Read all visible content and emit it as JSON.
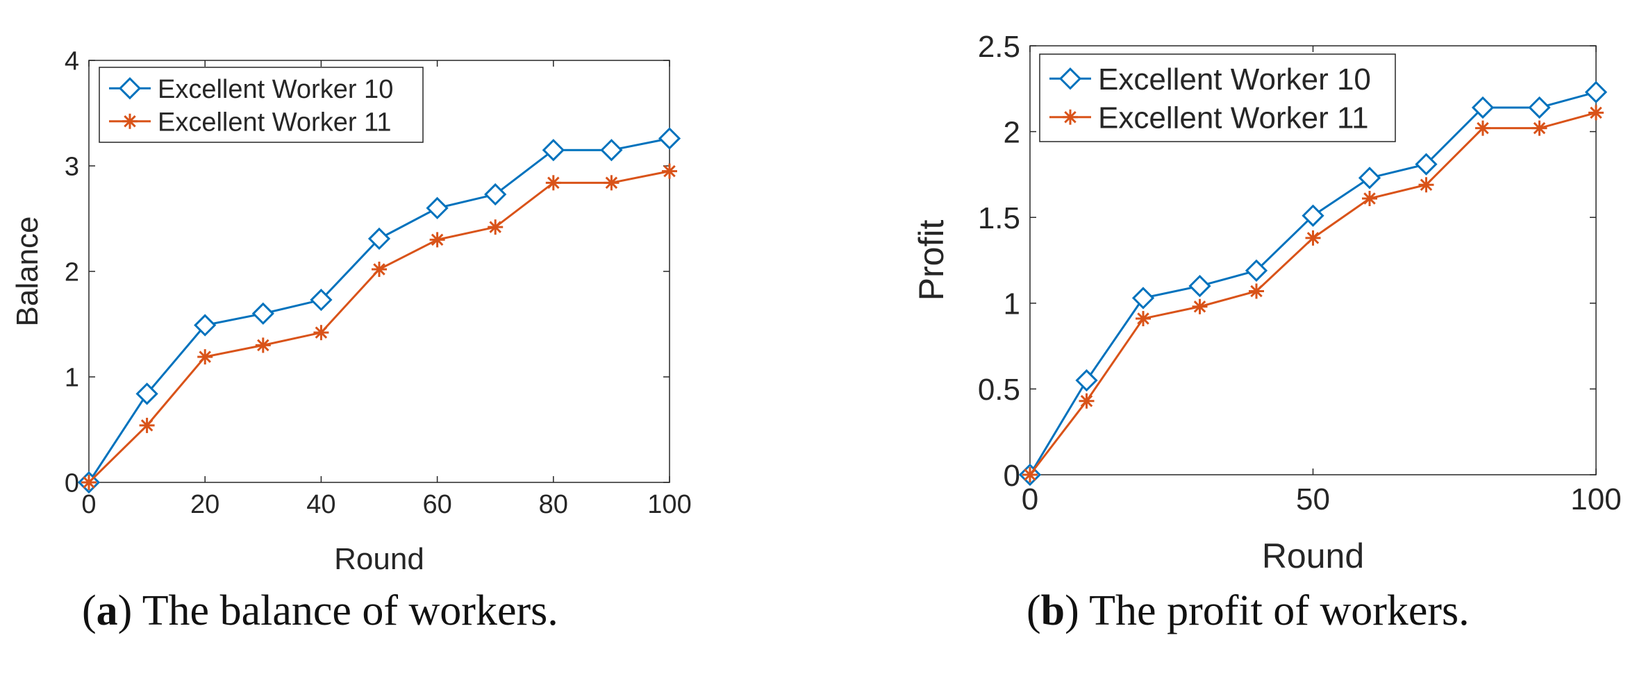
{
  "colors": {
    "series_blue": "#0072BD",
    "series_orange": "#D95319",
    "axis": "#262626"
  },
  "captions": [
    {
      "letter": "a",
      "text": "The balance of workers."
    },
    {
      "letter": "b",
      "text": "The profit of workers."
    }
  ],
  "chart_data": [
    {
      "type": "line",
      "xlabel": "Round",
      "ylabel": "Balance",
      "xlim": [
        0,
        100
      ],
      "ylim": [
        0,
        4
      ],
      "xticks": [
        0,
        20,
        40,
        60,
        80,
        100
      ],
      "yticks": [
        0,
        1,
        2,
        3,
        4
      ],
      "legend_position": "top-left",
      "grid": false,
      "x": [
        0,
        10,
        20,
        30,
        40,
        50,
        60,
        70,
        80,
        90,
        100
      ],
      "series": [
        {
          "name": "Excellent Worker 10",
          "marker": "diamond",
          "color": "#0072BD",
          "values": [
            0,
            0.84,
            1.49,
            1.6,
            1.73,
            2.31,
            2.6,
            2.73,
            3.15,
            3.15,
            3.26
          ]
        },
        {
          "name": "Excellent Worker 11",
          "marker": "asterisk",
          "color": "#D95319",
          "values": [
            0,
            0.54,
            1.19,
            1.3,
            1.42,
            2.02,
            2.3,
            2.42,
            2.84,
            2.84,
            2.95
          ]
        }
      ]
    },
    {
      "type": "line",
      "xlabel": "Round",
      "ylabel": "Profit",
      "xlim": [
        0,
        100
      ],
      "ylim": [
        0,
        2.5
      ],
      "xticks": [
        0,
        50,
        100
      ],
      "yticks": [
        0,
        0.5,
        1,
        1.5,
        2,
        2.5
      ],
      "legend_position": "top-left",
      "grid": false,
      "x": [
        0,
        10,
        20,
        30,
        40,
        50,
        60,
        70,
        80,
        90,
        100
      ],
      "series": [
        {
          "name": "Excellent Worker 10",
          "marker": "diamond",
          "color": "#0072BD",
          "values": [
            0,
            0.55,
            1.03,
            1.1,
            1.19,
            1.51,
            1.73,
            1.81,
            2.14,
            2.14,
            2.23
          ]
        },
        {
          "name": "Excellent Worker 11",
          "marker": "asterisk",
          "color": "#D95319",
          "values": [
            0,
            0.43,
            0.91,
            0.98,
            1.07,
            1.38,
            1.61,
            1.69,
            2.02,
            2.02,
            2.11
          ]
        }
      ]
    }
  ]
}
